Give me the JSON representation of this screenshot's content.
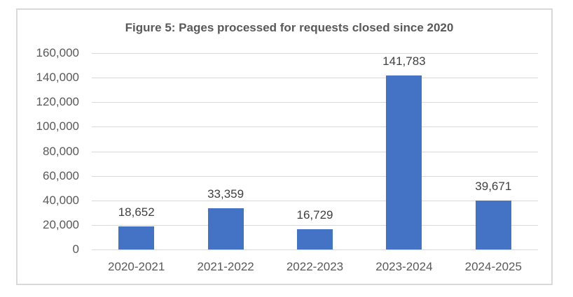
{
  "chart_data": {
    "type": "bar",
    "title": "Figure 5: Pages processed for requests closed since 2020",
    "categories": [
      "2020-2021",
      "2021-2022",
      "2022-2023",
      "2023-2024",
      "2024-2025"
    ],
    "values": [
      18652,
      33359,
      16729,
      141783,
      39671
    ],
    "data_labels": [
      "18,652",
      "33,359",
      "16,729",
      "141,783",
      "39,671"
    ],
    "xlabel": "",
    "ylabel": "",
    "ylim": [
      0,
      160000
    ],
    "yticks": [
      0,
      20000,
      40000,
      60000,
      80000,
      100000,
      120000,
      140000,
      160000
    ],
    "ytick_labels": [
      "0",
      "20,000",
      "40,000",
      "60,000",
      "80,000",
      "100,000",
      "120,000",
      "140,000",
      "160,000"
    ],
    "grid": true,
    "legend": "none",
    "colors": {
      "bar": "#4472c4",
      "grid": "#d9d9d9",
      "text": "#595959",
      "border": "#d9d9d9"
    }
  }
}
